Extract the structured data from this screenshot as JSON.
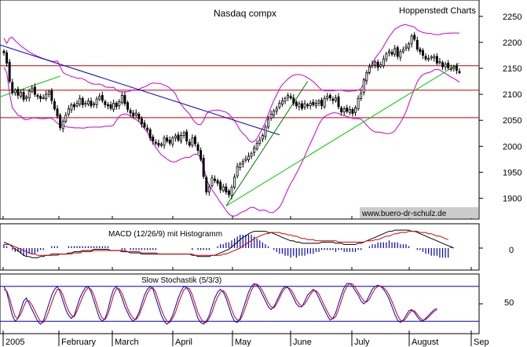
{
  "chart_data": [
    {
      "type": "candlestick",
      "title": "Nasdaq compx",
      "source_label": "Hoppenstedt Charts",
      "watermark": "www.buero-dr-schulz.de",
      "ylim": [
        1860,
        2280
      ],
      "y_ticks": [
        1900,
        1950,
        2000,
        2050,
        2100,
        2150,
        2200,
        2250
      ],
      "horizontal_lines": [
        2155,
        2108,
        2055
      ],
      "months": [
        "2005",
        "February",
        "March",
        "April",
        "May",
        "June",
        "July",
        "August",
        "Sep"
      ],
      "close": [
        2180,
        2160,
        2125,
        2103,
        2108,
        2098,
        2104,
        2090,
        2095,
        2106,
        2112,
        2100,
        2096,
        2092,
        2094,
        2100,
        2105,
        2088,
        2072,
        2058,
        2036,
        2048,
        2060,
        2072,
        2080,
        2076,
        2083,
        2092,
        2080,
        2083,
        2087,
        2078,
        2082,
        2091,
        2096,
        2088,
        2080,
        2078,
        2073,
        2083,
        2076,
        2086,
        2098,
        2082,
        2071,
        2064,
        2058,
        2064,
        2053,
        2043,
        2037,
        2032,
        2016,
        2010,
        2006,
        2002,
        2004,
        2016,
        2010,
        2006,
        2016,
        2020,
        2012,
        2021,
        2026,
        2010,
        2002,
        2016,
        2005,
        1992,
        1975,
        1942,
        1912,
        1922,
        1939,
        1934,
        1929,
        1917,
        1922,
        1912,
        1907,
        1921,
        1941,
        1961,
        1966,
        1971,
        1976,
        1981,
        1986,
        1997,
        2006,
        2012,
        2021,
        2037,
        2052,
        2062,
        2068,
        2073,
        2083,
        2087,
        2092,
        2098,
        2093,
        2083,
        2078,
        2082,
        2073,
        2082,
        2078,
        2083,
        2080,
        2083,
        2087,
        2078,
        2092,
        2096,
        2093,
        2088,
        2093,
        2076,
        2066,
        2072,
        2067,
        2071,
        2063,
        2074,
        2092,
        2102,
        2128,
        2142,
        2153,
        2158,
        2162,
        2152,
        2157,
        2168,
        2178,
        2183,
        2177,
        2188,
        2173,
        2182,
        2186,
        2191,
        2197,
        2212,
        2206,
        2187,
        2182,
        2175,
        2168,
        2169,
        2172,
        2173,
        2160,
        2163,
        2153,
        2158,
        2151,
        2150,
        2153,
        2146,
        2143
      ]
    },
    {
      "type": "macd",
      "title": "MACD (12/26/9) mit Histogramm",
      "y_tick": "0",
      "macd": [
        5,
        4,
        3,
        1,
        -1,
        -2,
        -4,
        -6,
        -7,
        -7,
        -8,
        -8,
        -8,
        -7,
        -7,
        -6,
        -6,
        -5,
        -5,
        -5,
        -5,
        -5,
        -5,
        -4,
        -4,
        -3,
        -3,
        -3,
        -2,
        -2,
        -2,
        -2,
        -1,
        -1,
        -1,
        -1,
        -1,
        -1,
        -2,
        -2,
        -2,
        -2,
        -3,
        -3,
        -3,
        -4,
        -4,
        -4,
        -4,
        -5,
        -5,
        -5,
        -5,
        -5,
        -5,
        -5,
        -5,
        -5,
        -5,
        -5,
        -5,
        -5,
        -5,
        -5,
        -5,
        -5,
        -5,
        -6,
        -6,
        -7,
        -7,
        -7,
        -7,
        -7,
        -6,
        -6,
        -5,
        -4,
        -3,
        -2,
        -1,
        1,
        3,
        5,
        7,
        9,
        10,
        12,
        13,
        14,
        14,
        14,
        14,
        14,
        13,
        13,
        12,
        11,
        10,
        9,
        8,
        7,
        6,
        6,
        5,
        5,
        4,
        4,
        4,
        4,
        4,
        4,
        4,
        5,
        5,
        5,
        5,
        5,
        4,
        4,
        4,
        3,
        3,
        3,
        3,
        3,
        4,
        4,
        5,
        6,
        7,
        8,
        9,
        10,
        11,
        12,
        13,
        14,
        14,
        15,
        15,
        15,
        15,
        15,
        15,
        14,
        14,
        13,
        12,
        11,
        10,
        9,
        8,
        7,
        6,
        5,
        4,
        3,
        2,
        1,
        0
      ],
      "signal": [
        3,
        3,
        3,
        2,
        1,
        0,
        -1,
        -2,
        -3,
        -4,
        -5,
        -5,
        -6,
        -6,
        -6,
        -6,
        -6,
        -6,
        -6,
        -6,
        -5,
        -5,
        -5,
        -5,
        -5,
        -4,
        -4,
        -4,
        -3,
        -3,
        -3,
        -3,
        -2,
        -2,
        -2,
        -2,
        -2,
        -2,
        -2,
        -2,
        -2,
        -2,
        -2,
        -2,
        -3,
        -3,
        -3,
        -3,
        -3,
        -4,
        -4,
        -4,
        -4,
        -4,
        -4,
        -5,
        -5,
        -5,
        -5,
        -5,
        -5,
        -5,
        -5,
        -5,
        -5,
        -5,
        -5,
        -5,
        -6,
        -6,
        -6,
        -6,
        -6,
        -6,
        -6,
        -6,
        -6,
        -6,
        -5,
        -5,
        -4,
        -3,
        -2,
        -1,
        0,
        2,
        3,
        5,
        6,
        8,
        9,
        10,
        11,
        12,
        12,
        13,
        13,
        13,
        13,
        12,
        12,
        11,
        11,
        10,
        10,
        9,
        8,
        8,
        7,
        7,
        7,
        6,
        6,
        6,
        6,
        6,
        6,
        6,
        6,
        5,
        5,
        5,
        5,
        5,
        5,
        5,
        5,
        5,
        5,
        6,
        6,
        6,
        7,
        7,
        8,
        9,
        10,
        10,
        11,
        12,
        12,
        13,
        13,
        13,
        14,
        14,
        14,
        14,
        13,
        13,
        13,
        12,
        12,
        11,
        10,
        10,
        9,
        8,
        7
      ]
    },
    {
      "type": "stochastic",
      "title": "Slow Stochastik (5/3/3)",
      "y_tick": "50",
      "k": [
        80,
        70,
        50,
        30,
        20,
        25,
        40,
        55,
        60,
        50,
        40,
        30,
        20,
        15,
        20,
        35,
        50,
        65,
        75,
        80,
        70,
        55,
        40,
        30,
        25,
        30,
        45,
        60,
        70,
        78,
        80,
        70,
        55,
        40,
        25,
        20,
        25,
        40,
        60,
        75,
        80,
        72,
        60,
        45,
        35,
        25,
        20,
        25,
        35,
        50,
        65,
        75,
        80,
        75,
        60,
        45,
        30,
        20,
        15,
        20,
        30,
        45,
        60,
        72,
        80,
        78,
        70,
        55,
        40,
        25,
        18,
        15,
        20,
        30,
        45,
        60,
        70,
        75,
        70,
        60,
        45,
        30,
        20,
        18,
        25,
        40,
        55,
        70,
        80,
        85,
        82,
        75,
        65,
        55,
        45,
        40,
        45,
        55,
        65,
        75,
        80,
        78,
        70,
        60,
        50,
        45,
        45,
        55,
        65,
        70,
        75,
        70,
        60,
        50,
        40,
        30,
        22,
        25,
        35,
        50,
        65,
        78,
        85,
        85,
        80,
        72,
        65,
        55,
        50,
        55,
        65,
        75,
        80,
        82,
        80,
        75,
        68,
        58,
        45,
        32,
        22,
        18,
        22,
        30,
        38,
        40,
        35,
        28,
        22,
        20,
        25,
        30,
        35,
        40,
        42
      ],
      "d": [
        75,
        72,
        60,
        42,
        28,
        25,
        32,
        45,
        55,
        55,
        48,
        38,
        28,
        20,
        18,
        25,
        38,
        52,
        65,
        75,
        75,
        65,
        50,
        38,
        30,
        28,
        38,
        50,
        62,
        72,
        78,
        75,
        65,
        50,
        35,
        25,
        23,
        32,
        48,
        65,
        76,
        76,
        68,
        55,
        42,
        32,
        25,
        23,
        30,
        42,
        55,
        68,
        76,
        78,
        70,
        55,
        40,
        28,
        20,
        18,
        25,
        35,
        50,
        63,
        74,
        78,
        76,
        65,
        50,
        35,
        25,
        18,
        18,
        25,
        35,
        50,
        62,
        70,
        73,
        67,
        55,
        40,
        28,
        22,
        22,
        32,
        45,
        60,
        73,
        82,
        84,
        80,
        72,
        62,
        52,
        45,
        43,
        50,
        60,
        70,
        77,
        78,
        75,
        67,
        57,
        50,
        46,
        50,
        58,
        66,
        72,
        73,
        67,
        57,
        47,
        37,
        28,
        24,
        28,
        40,
        55,
        70,
        80,
        85,
        84,
        78,
        70,
        62,
        55,
        53,
        58,
        68,
        76,
        80,
        81,
        78,
        73,
        65,
        54,
        42,
        30,
        22,
        20,
        25,
        33,
        38,
        38,
        32,
        26,
        22,
        23,
        27,
        32,
        37,
        40
      ]
    }
  ]
}
